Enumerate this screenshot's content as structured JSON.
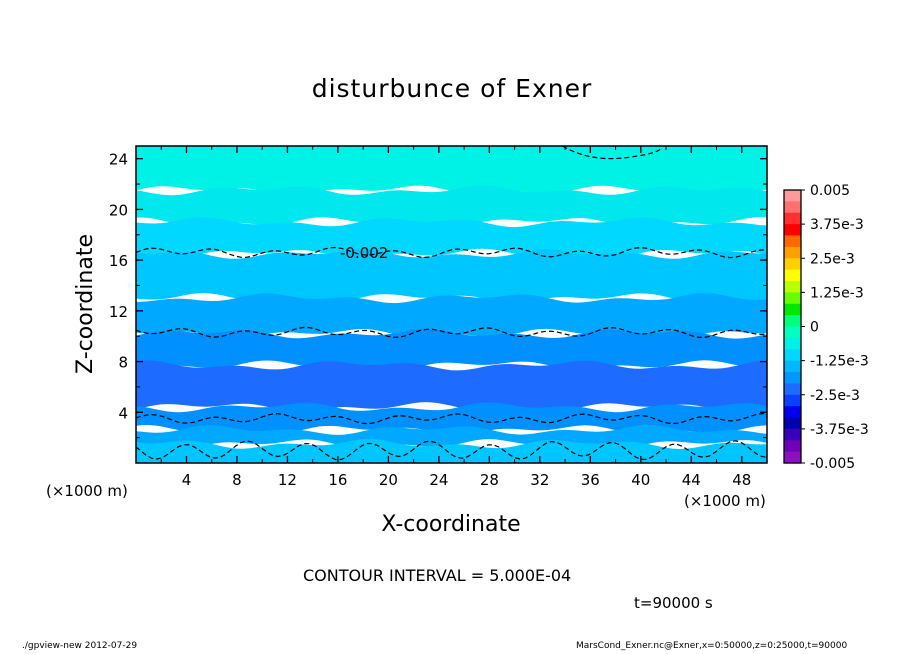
{
  "title": "disturbunce of Exner",
  "chart_data": {
    "type": "contour",
    "title": "disturbunce of Exner",
    "xlabel": "X-coordinate",
    "ylabel": "Z-coordinate",
    "x_unit": "(×1000 m)",
    "y_unit": "(×1000 m)",
    "xlim": [
      0,
      50
    ],
    "ylim": [
      0,
      25
    ],
    "x_ticks": [
      4,
      8,
      12,
      16,
      20,
      24,
      28,
      32,
      36,
      40,
      44,
      48
    ],
    "y_ticks": [
      4,
      8,
      12,
      16,
      20,
      24
    ],
    "contour_label": "-0.002",
    "colorbar": {
      "labels": [
        "0.005",
        "3.75e-3",
        "2.5e-3",
        "1.25e-3",
        "0",
        "-1.25e-3",
        "-2.5e-3",
        "-3.75e-3",
        "-0.005"
      ],
      "colors": [
        "#ff9a9a",
        "#ff7070",
        "#ff3030",
        "#ff0000",
        "#ff6a00",
        "#ffa000",
        "#ffd000",
        "#ffff00",
        "#b8ff00",
        "#66ff00",
        "#00e800",
        "#00ff7a",
        "#00ffc0",
        "#00f2e6",
        "#00d8ff",
        "#00b8ff",
        "#0098ff",
        "#1e6cff",
        "#0a40ff",
        "#0000f0",
        "#0000b0",
        "#3a00b8",
        "#7000b8",
        "#8a10c0"
      ]
    },
    "bands": [
      {
        "z_bottom": 21.5,
        "z_top": 25,
        "color": "#00f2e6"
      },
      {
        "z_bottom": 19,
        "z_top": 21.5,
        "color": "#00e8ee"
      },
      {
        "z_bottom": 16.5,
        "z_top": 19,
        "color": "#00d8ff"
      },
      {
        "z_bottom": 13,
        "z_top": 16.5,
        "color": "#00c6ff"
      },
      {
        "z_bottom": 10.2,
        "z_top": 13,
        "color": "#00a8ff"
      },
      {
        "z_bottom": 7.7,
        "z_top": 10.2,
        "color": "#0090ff"
      },
      {
        "z_bottom": 4.4,
        "z_top": 7.7,
        "color": "#1e6cff"
      },
      {
        "z_bottom": 2.6,
        "z_top": 4.4,
        "color": "#0090ff"
      },
      {
        "z_bottom": 1.5,
        "z_top": 2.6,
        "color": "#00a8ff"
      },
      {
        "z_bottom": 0,
        "z_top": 1.5,
        "color": "#00c6ff"
      }
    ],
    "dashed_contours": [
      16.6,
      10.3,
      3.5,
      1.0
    ]
  },
  "contour_interval": "CONTOUR INTERVAL = 5.000E-04",
  "time": "t=90000 s",
  "footer_left": "./gpview-new  2012-07-29",
  "footer_right": "MarsCond_Exner.nc@Exner,x=0:50000,z=0:25000,t=90000"
}
